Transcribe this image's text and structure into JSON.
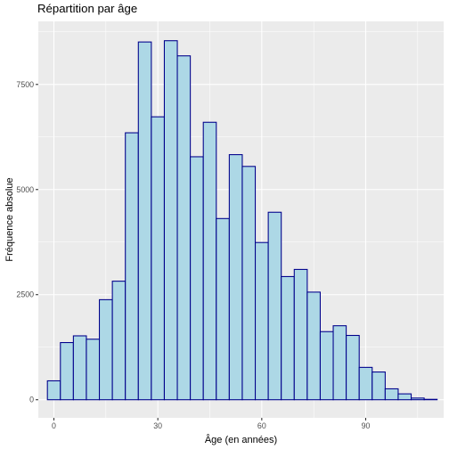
{
  "chart_data": {
    "type": "bar",
    "title": "Répartition par âge",
    "xlabel": "Âge (en années)",
    "ylabel": "Fréquence absolue",
    "x_ticks": [
      0,
      30,
      60,
      90
    ],
    "y_ticks": [
      0,
      2500,
      5000,
      7500
    ],
    "xlim": [
      -4.5,
      112.5
    ],
    "ylim": [
      -430,
      9000
    ],
    "bin_width": 3.75,
    "bins": [
      {
        "x": 0.0,
        "count": 450
      },
      {
        "x": 3.75,
        "count": 1360
      },
      {
        "x": 7.5,
        "count": 1520
      },
      {
        "x": 11.25,
        "count": 1440
      },
      {
        "x": 15.0,
        "count": 2380
      },
      {
        "x": 18.75,
        "count": 2820
      },
      {
        "x": 22.5,
        "count": 6350
      },
      {
        "x": 26.25,
        "count": 8510
      },
      {
        "x": 30.0,
        "count": 6730
      },
      {
        "x": 33.75,
        "count": 8540
      },
      {
        "x": 37.5,
        "count": 8180
      },
      {
        "x": 41.25,
        "count": 5780
      },
      {
        "x": 45.0,
        "count": 6600
      },
      {
        "x": 48.75,
        "count": 4310
      },
      {
        "x": 52.5,
        "count": 5830
      },
      {
        "x": 56.25,
        "count": 5550
      },
      {
        "x": 60.0,
        "count": 3740
      },
      {
        "x": 63.75,
        "count": 4460
      },
      {
        "x": 67.5,
        "count": 2930
      },
      {
        "x": 71.25,
        "count": 3100
      },
      {
        "x": 75.0,
        "count": 2560
      },
      {
        "x": 78.75,
        "count": 1620
      },
      {
        "x": 82.5,
        "count": 1760
      },
      {
        "x": 86.25,
        "count": 1530
      },
      {
        "x": 90.0,
        "count": 770
      },
      {
        "x": 93.75,
        "count": 660
      },
      {
        "x": 97.5,
        "count": 260
      },
      {
        "x": 101.25,
        "count": 140
      },
      {
        "x": 105.0,
        "count": 40
      },
      {
        "x": 108.75,
        "count": 10
      }
    ],
    "grid": true,
    "colors": {
      "panel_background": "#ebebeb",
      "bar_fill": "#add8e6",
      "bar_outline": "#00008b",
      "grid": "#ffffff"
    }
  }
}
